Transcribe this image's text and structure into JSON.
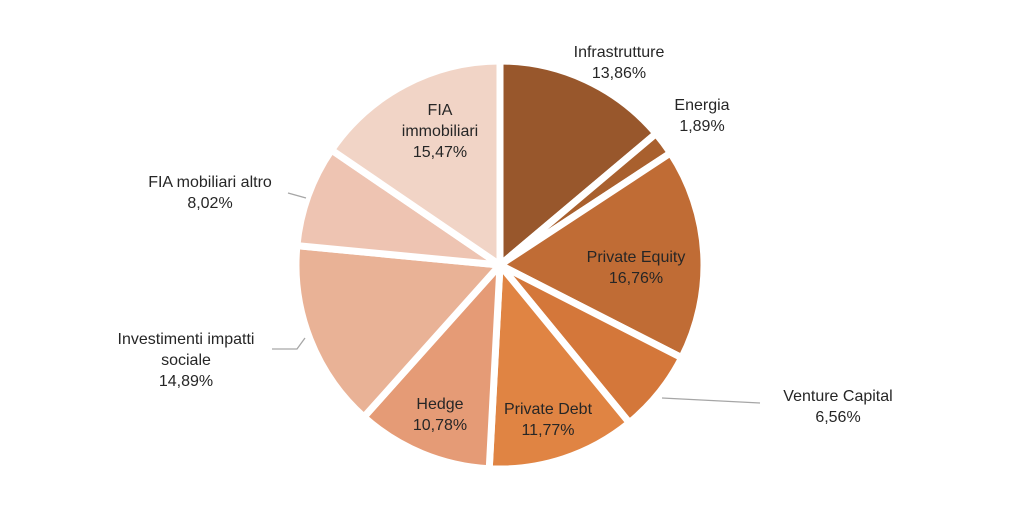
{
  "chart_data": {
    "type": "pie",
    "slices": [
      {
        "name": "Infrastrutture",
        "label": "13,86%",
        "value": 13.86,
        "color": "#98572C"
      },
      {
        "name": "Energia",
        "label": "1,89%",
        "value": 1.89,
        "color": "#A9602E"
      },
      {
        "name": "Private Equity",
        "label": "16,76%",
        "value": 16.76,
        "color": "#C06C35"
      },
      {
        "name": "Venture Capital",
        "label": "6,56%",
        "value": 6.56,
        "color": "#D4773A"
      },
      {
        "name": "Private Debt",
        "label": "11,77%",
        "value": 11.77,
        "color": "#E08443"
      },
      {
        "name": "Hedge",
        "label": "10,78%",
        "value": 10.78,
        "color": "#E59B76"
      },
      {
        "name": "Investimenti impatti sociale",
        "label": "14,89%",
        "value": 14.89,
        "color": "#E9B296"
      },
      {
        "name": "FIA mobiliari altro",
        "label": "8,02%",
        "value": 8.02,
        "color": "#EEC4B2"
      },
      {
        "name": "FIA immobiliari",
        "label": "15,47%",
        "value": 15.47,
        "color": "#F1D4C6"
      }
    ]
  }
}
